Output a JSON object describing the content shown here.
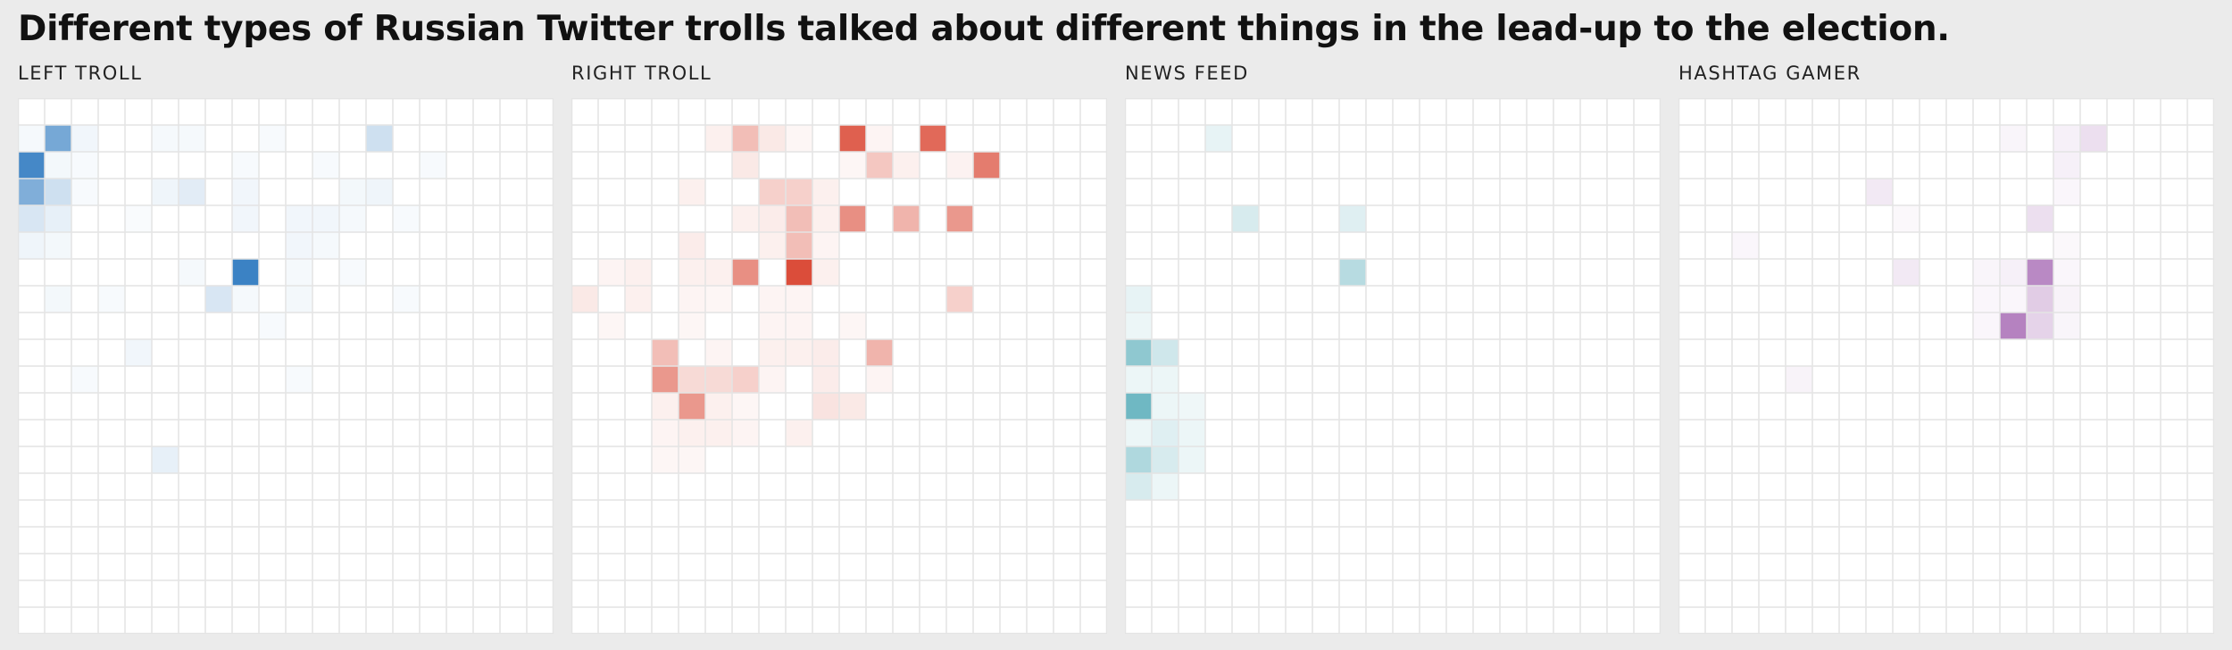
{
  "title": "Different types of Russian Twitter trolls talked about different things in the lead-up to the election.",
  "colors": {
    "left_troll": "#3b82c4",
    "right_troll": "#d94430",
    "news_feed": "#5fb0bc",
    "hashtag_gamer": "#a86cb5",
    "grid_line": "#e4e4e4",
    "background": "#ebebeb"
  },
  "chart_data": [
    {
      "type": "heatmap",
      "title": "LEFT TROLL",
      "rows": 20,
      "cols": 20,
      "cells": [
        [
          0,
          1,
          0.05
        ],
        [
          1,
          1,
          0.7
        ],
        [
          2,
          1,
          0.07
        ],
        [
          5,
          1,
          0.05
        ],
        [
          6,
          1,
          0.05
        ],
        [
          9,
          1,
          0.04
        ],
        [
          13,
          1,
          0.25
        ],
        [
          0,
          2,
          0.95
        ],
        [
          1,
          2,
          0.06
        ],
        [
          2,
          2,
          0.04
        ],
        [
          8,
          2,
          0.04
        ],
        [
          11,
          2,
          0.04
        ],
        [
          15,
          2,
          0.04
        ],
        [
          0,
          3,
          0.65
        ],
        [
          1,
          3,
          0.25
        ],
        [
          2,
          3,
          0.04
        ],
        [
          5,
          3,
          0.08
        ],
        [
          6,
          3,
          0.15
        ],
        [
          8,
          3,
          0.07
        ],
        [
          12,
          3,
          0.06
        ],
        [
          13,
          3,
          0.08
        ],
        [
          0,
          4,
          0.2
        ],
        [
          1,
          4,
          0.12
        ],
        [
          4,
          4,
          0.03
        ],
        [
          8,
          4,
          0.07
        ],
        [
          10,
          4,
          0.07
        ],
        [
          11,
          4,
          0.07
        ],
        [
          12,
          4,
          0.05
        ],
        [
          14,
          4,
          0.04
        ],
        [
          0,
          5,
          0.08
        ],
        [
          1,
          5,
          0.06
        ],
        [
          10,
          5,
          0.07
        ],
        [
          11,
          5,
          0.05
        ],
        [
          6,
          6,
          0.05
        ],
        [
          8,
          6,
          1.0
        ],
        [
          10,
          6,
          0.05
        ],
        [
          12,
          6,
          0.04
        ],
        [
          1,
          7,
          0.06
        ],
        [
          3,
          7,
          0.04
        ],
        [
          7,
          7,
          0.2
        ],
        [
          8,
          7,
          0.05
        ],
        [
          10,
          7,
          0.06
        ],
        [
          14,
          7,
          0.04
        ],
        [
          9,
          8,
          0.04
        ],
        [
          4,
          9,
          0.07
        ],
        [
          2,
          10,
          0.04
        ],
        [
          10,
          10,
          0.04
        ],
        [
          5,
          13,
          0.12
        ]
      ]
    },
    {
      "type": "heatmap",
      "title": "RIGHT TROLL",
      "rows": 20,
      "cols": 20,
      "cells": [
        [
          5,
          1,
          0.08
        ],
        [
          6,
          1,
          0.35
        ],
        [
          7,
          1,
          0.12
        ],
        [
          8,
          1,
          0.05
        ],
        [
          10,
          1,
          0.85
        ],
        [
          11,
          1,
          0.06
        ],
        [
          13,
          1,
          0.8
        ],
        [
          6,
          2,
          0.12
        ],
        [
          10,
          2,
          0.05
        ],
        [
          11,
          2,
          0.3
        ],
        [
          12,
          2,
          0.08
        ],
        [
          14,
          2,
          0.07
        ],
        [
          15,
          2,
          0.7
        ],
        [
          4,
          3,
          0.08
        ],
        [
          7,
          3,
          0.25
        ],
        [
          8,
          3,
          0.25
        ],
        [
          9,
          3,
          0.08
        ],
        [
          6,
          4,
          0.08
        ],
        [
          7,
          4,
          0.1
        ],
        [
          8,
          4,
          0.35
        ],
        [
          9,
          4,
          0.08
        ],
        [
          10,
          4,
          0.6
        ],
        [
          12,
          4,
          0.4
        ],
        [
          14,
          4,
          0.55
        ],
        [
          4,
          5,
          0.1
        ],
        [
          7,
          5,
          0.08
        ],
        [
          8,
          5,
          0.35
        ],
        [
          9,
          5,
          0.06
        ],
        [
          1,
          6,
          0.06
        ],
        [
          2,
          6,
          0.08
        ],
        [
          4,
          6,
          0.08
        ],
        [
          5,
          6,
          0.08
        ],
        [
          6,
          6,
          0.6
        ],
        [
          8,
          6,
          0.95
        ],
        [
          9,
          6,
          0.08
        ],
        [
          0,
          7,
          0.12
        ],
        [
          2,
          7,
          0.08
        ],
        [
          4,
          7,
          0.06
        ],
        [
          5,
          7,
          0.05
        ],
        [
          7,
          7,
          0.06
        ],
        [
          8,
          7,
          0.06
        ],
        [
          14,
          7,
          0.25
        ],
        [
          1,
          8,
          0.05
        ],
        [
          4,
          8,
          0.05
        ],
        [
          7,
          8,
          0.06
        ],
        [
          8,
          8,
          0.06
        ],
        [
          10,
          8,
          0.05
        ],
        [
          3,
          9,
          0.35
        ],
        [
          5,
          9,
          0.06
        ],
        [
          7,
          9,
          0.08
        ],
        [
          8,
          9,
          0.08
        ],
        [
          9,
          9,
          0.1
        ],
        [
          11,
          9,
          0.4
        ],
        [
          3,
          10,
          0.55
        ],
        [
          4,
          10,
          0.2
        ],
        [
          5,
          10,
          0.2
        ],
        [
          6,
          10,
          0.25
        ],
        [
          7,
          10,
          0.06
        ],
        [
          9,
          10,
          0.1
        ],
        [
          11,
          10,
          0.06
        ],
        [
          3,
          11,
          0.08
        ],
        [
          4,
          11,
          0.55
        ],
        [
          5,
          11,
          0.08
        ],
        [
          6,
          11,
          0.05
        ],
        [
          9,
          11,
          0.15
        ],
        [
          10,
          11,
          0.12
        ],
        [
          3,
          12,
          0.06
        ],
        [
          4,
          12,
          0.08
        ],
        [
          5,
          12,
          0.08
        ],
        [
          6,
          12,
          0.06
        ],
        [
          8,
          12,
          0.08
        ],
        [
          3,
          13,
          0.05
        ],
        [
          4,
          13,
          0.05
        ]
      ]
    },
    {
      "type": "heatmap",
      "title": "NEWS FEED",
      "rows": 20,
      "cols": 20,
      "cells": [
        [
          3,
          1,
          0.15
        ],
        [
          4,
          4,
          0.25
        ],
        [
          8,
          4,
          0.2
        ],
        [
          8,
          6,
          0.45
        ],
        [
          0,
          7,
          0.15
        ],
        [
          0,
          8,
          0.12
        ],
        [
          0,
          9,
          0.7
        ],
        [
          1,
          9,
          0.3
        ],
        [
          0,
          10,
          0.12
        ],
        [
          1,
          10,
          0.12
        ],
        [
          0,
          11,
          0.9
        ],
        [
          1,
          11,
          0.12
        ],
        [
          2,
          11,
          0.1
        ],
        [
          0,
          12,
          0.12
        ],
        [
          1,
          12,
          0.2
        ],
        [
          2,
          12,
          0.12
        ],
        [
          0,
          13,
          0.5
        ],
        [
          1,
          13,
          0.25
        ],
        [
          2,
          13,
          0.12
        ],
        [
          0,
          14,
          0.25
        ],
        [
          1,
          14,
          0.12
        ]
      ]
    },
    {
      "type": "heatmap",
      "title": "HASHTAG GAMER",
      "rows": 20,
      "cols": 20,
      "cells": [
        [
          12,
          1,
          0.07
        ],
        [
          14,
          1,
          0.1
        ],
        [
          15,
          1,
          0.22
        ],
        [
          14,
          2,
          0.1
        ],
        [
          7,
          3,
          0.15
        ],
        [
          14,
          3,
          0.06
        ],
        [
          8,
          4,
          0.05
        ],
        [
          13,
          4,
          0.22
        ],
        [
          2,
          5,
          0.06
        ],
        [
          14,
          5,
          0.05
        ],
        [
          8,
          6,
          0.15
        ],
        [
          11,
          6,
          0.07
        ],
        [
          12,
          6,
          0.1
        ],
        [
          13,
          6,
          0.8
        ],
        [
          14,
          6,
          0.06
        ],
        [
          11,
          7,
          0.06
        ],
        [
          12,
          7,
          0.06
        ],
        [
          13,
          7,
          0.35
        ],
        [
          14,
          7,
          0.08
        ],
        [
          11,
          8,
          0.06
        ],
        [
          12,
          8,
          0.85
        ],
        [
          13,
          8,
          0.3
        ],
        [
          14,
          8,
          0.07
        ],
        [
          4,
          10,
          0.08
        ]
      ]
    }
  ]
}
